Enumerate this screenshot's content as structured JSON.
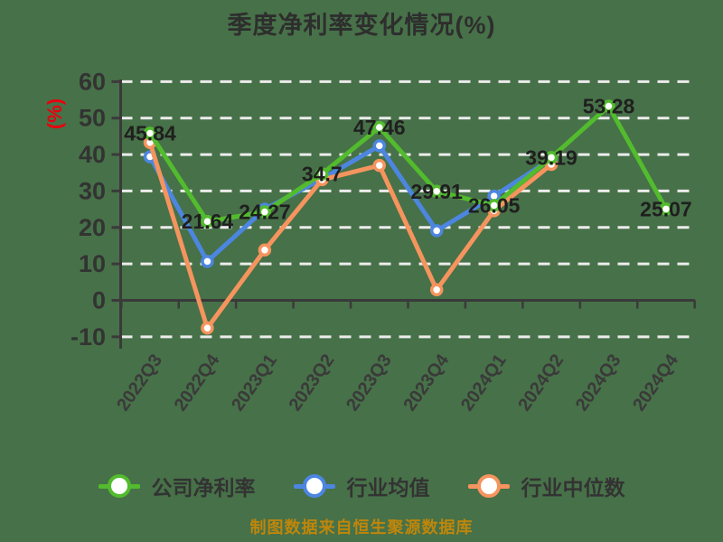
{
  "chart_data": {
    "type": "line",
    "title": "季度净利率变化情况(%)",
    "ylabel": "(%)",
    "categories": [
      "2022Q3",
      "2022Q4",
      "2023Q1",
      "2023Q2",
      "2023Q3",
      "2023Q4",
      "2024Q1",
      "2024Q2",
      "2024Q3",
      "2024Q4"
    ],
    "series": [
      {
        "name": "公司净利率",
        "color": "#52BB2E",
        "show_labels": true,
        "values": [
          45.84,
          21.64,
          24.27,
          34.7,
          47.46,
          29.91,
          26.05,
          39.19,
          53.28,
          25.07
        ]
      },
      {
        "name": "行业均值",
        "color": "#4C86E0",
        "show_labels": false,
        "values": [
          39.4,
          10.7,
          25.0,
          33.3,
          42.4,
          19.1,
          28.6,
          38.8,
          null,
          null
        ]
      },
      {
        "name": "行业中位数",
        "color": "#F5945E",
        "show_labels": false,
        "values": [
          43.3,
          -7.6,
          13.8,
          33.1,
          37.0,
          2.9,
          24.6,
          37.3,
          null,
          null
        ]
      }
    ],
    "ylim": [
      -10,
      60
    ],
    "yticks": [
      60,
      50,
      40,
      30,
      20,
      10,
      0,
      -10
    ],
    "grid": "dashed-horizontal",
    "legend_position": "bottom",
    "x_axis_on_zero": true
  },
  "footer": {
    "source_note": "制图数据来自恒生聚源数据库"
  },
  "style_colors": {
    "background": "#477148",
    "grid_line": "#ECECEC",
    "axis_line": "#3A3A3A",
    "tick_text": "#333333",
    "x_tick_text": "#3A3A3A",
    "title_text": "#2E2E2E",
    "data_label_text": "#1F1F1F",
    "ylabel_red": "#E8000D",
    "legend_text": "#333333",
    "footer_text": "#BE860B",
    "marker_fill": "#FFFFFF"
  }
}
